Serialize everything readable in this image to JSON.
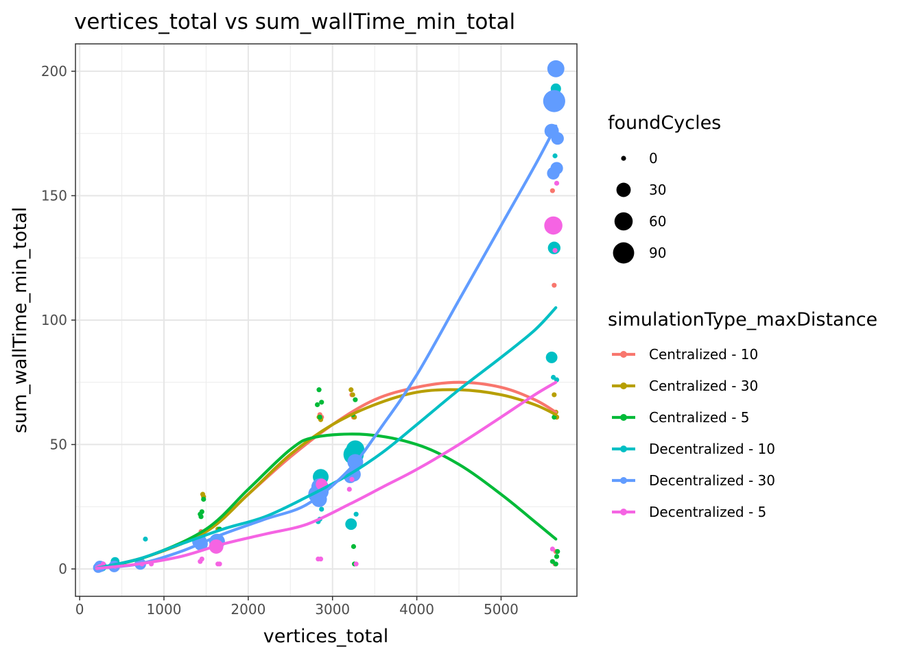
{
  "chart_data": {
    "type": "scatter",
    "title": "vertices_total  vs  sum_wallTime_min_total",
    "xlabel": "vertices_total",
    "ylabel": "sum_wallTime_min_total",
    "xlim": [
      -50,
      5900
    ],
    "ylim": [
      -11,
      211
    ],
    "xticks": [
      0,
      1000,
      2000,
      3000,
      4000,
      5000
    ],
    "yticks": [
      0,
      50,
      100,
      150,
      200
    ],
    "grid": true,
    "legend_size": {
      "title": "foundCycles",
      "entries": [
        {
          "label": "0",
          "value": 0
        },
        {
          "label": "30",
          "value": 30
        },
        {
          "label": "60",
          "value": 60
        },
        {
          "label": "90",
          "value": 90
        }
      ]
    },
    "legend_color": {
      "title": "simulationType_maxDistance",
      "placement": "right"
    },
    "series": [
      {
        "name": "Centralized - 10",
        "color": "#F8766D",
        "points": [
          [
            220,
            0.5,
            0
          ],
          [
            250,
            0.8,
            0
          ],
          [
            400,
            1,
            0
          ],
          [
            720,
            2,
            0
          ],
          [
            1440,
            15,
            0
          ],
          [
            1460,
            14,
            0
          ],
          [
            1620,
            10,
            0
          ],
          [
            2850,
            62,
            0
          ],
          [
            2870,
            61,
            0
          ],
          [
            3230,
            70,
            0
          ],
          [
            3250,
            61,
            0
          ],
          [
            5610,
            152,
            0
          ],
          [
            5630,
            114,
            0
          ],
          [
            5640,
            2,
            0
          ],
          [
            5650,
            7,
            0
          ],
          [
            5660,
            61,
            0
          ]
        ],
        "smooth": [
          [
            200,
            0.2
          ],
          [
            800,
            5
          ],
          [
            1500,
            15
          ],
          [
            2000,
            30
          ],
          [
            2500,
            45
          ],
          [
            3000,
            58
          ],
          [
            3500,
            68
          ],
          [
            4000,
            73
          ],
          [
            4500,
            75
          ],
          [
            5000,
            73
          ],
          [
            5400,
            68
          ],
          [
            5650,
            63
          ]
        ]
      },
      {
        "name": "Centralized - 30",
        "color": "#B79F00",
        "points": [
          [
            220,
            0.5,
            0
          ],
          [
            260,
            1,
            0
          ],
          [
            410,
            1,
            0
          ],
          [
            730,
            2,
            0
          ],
          [
            1460,
            30,
            0
          ],
          [
            1470,
            29,
            0
          ],
          [
            1640,
            16,
            0
          ],
          [
            2840,
            61,
            0
          ],
          [
            2860,
            60,
            0
          ],
          [
            3220,
            72,
            0
          ],
          [
            3240,
            70,
            0
          ],
          [
            3260,
            61,
            0
          ],
          [
            5630,
            70,
            0
          ],
          [
            5650,
            63,
            0
          ],
          [
            5660,
            61,
            0
          ]
        ],
        "smooth": [
          [
            200,
            0.2
          ],
          [
            800,
            5
          ],
          [
            1500,
            15
          ],
          [
            2000,
            30
          ],
          [
            2500,
            46
          ],
          [
            3000,
            58
          ],
          [
            3500,
            66
          ],
          [
            4000,
            71
          ],
          [
            4500,
            72
          ],
          [
            5000,
            70
          ],
          [
            5400,
            66
          ],
          [
            5650,
            62
          ]
        ]
      },
      {
        "name": "Centralized - 5",
        "color": "#00BA38",
        "points": [
          [
            220,
            0.5,
            0
          ],
          [
            250,
            0.5,
            0
          ],
          [
            400,
            1,
            0
          ],
          [
            720,
            2,
            0
          ],
          [
            1430,
            22,
            0
          ],
          [
            1440,
            21,
            0
          ],
          [
            1450,
            23,
            0
          ],
          [
            1470,
            28,
            0
          ],
          [
            1660,
            16,
            0
          ],
          [
            2820,
            66,
            0
          ],
          [
            2840,
            72,
            0
          ],
          [
            2850,
            61,
            0
          ],
          [
            2870,
            67,
            0
          ],
          [
            3240,
            62,
            0
          ],
          [
            3250,
            9,
            0
          ],
          [
            3260,
            2,
            0
          ],
          [
            3270,
            68,
            0
          ],
          [
            5610,
            3,
            0
          ],
          [
            5630,
            61,
            0
          ],
          [
            5650,
            2,
            0
          ],
          [
            5660,
            5,
            0
          ],
          [
            5670,
            7,
            0
          ]
        ],
        "smooth": [
          [
            200,
            0.2
          ],
          [
            800,
            5
          ],
          [
            1500,
            16
          ],
          [
            2000,
            32
          ],
          [
            2500,
            48
          ],
          [
            2800,
            53
          ],
          [
            3400,
            54
          ],
          [
            4000,
            50
          ],
          [
            4500,
            42
          ],
          [
            5000,
            30
          ],
          [
            5400,
            19
          ],
          [
            5650,
            12
          ]
        ]
      },
      {
        "name": "Decentralized - 10",
        "color": "#00BFC4",
        "points": [
          [
            230,
            0.5,
            5
          ],
          [
            260,
            1,
            10
          ],
          [
            420,
            3,
            5
          ],
          [
            780,
            12,
            0
          ],
          [
            1420,
            12,
            20
          ],
          [
            1440,
            11,
            15
          ],
          [
            1650,
            11,
            15
          ],
          [
            2830,
            19,
            0
          ],
          [
            2850,
            20,
            0
          ],
          [
            2860,
            37,
            40
          ],
          [
            2870,
            24,
            0
          ],
          [
            3220,
            18,
            15
          ],
          [
            3250,
            46,
            80
          ],
          [
            3270,
            48,
            60
          ],
          [
            3280,
            22,
            0
          ],
          [
            5600,
            85,
            15
          ],
          [
            5620,
            77,
            0
          ],
          [
            5630,
            129,
            20
          ],
          [
            5650,
            193,
            10
          ],
          [
            5660,
            76,
            0
          ],
          [
            5640,
            166,
            0
          ]
        ],
        "smooth": [
          [
            200,
            0.3
          ],
          [
            700,
            4
          ],
          [
            1200,
            10
          ],
          [
            1700,
            16
          ],
          [
            2200,
            21
          ],
          [
            2700,
            29
          ],
          [
            3200,
            38
          ],
          [
            3600,
            47
          ],
          [
            4000,
            58
          ],
          [
            4500,
            72
          ],
          [
            5000,
            85
          ],
          [
            5400,
            96
          ],
          [
            5650,
            105
          ]
        ]
      },
      {
        "name": "Decentralized - 30",
        "color": "#619CFF",
        "points": [
          [
            220,
            0.5,
            10
          ],
          [
            240,
            1,
            15
          ],
          [
            410,
            1,
            15
          ],
          [
            720,
            2,
            15
          ],
          [
            1420,
            11,
            30
          ],
          [
            1440,
            10,
            25
          ],
          [
            1630,
            11,
            40
          ],
          [
            2820,
            30,
            60
          ],
          [
            2840,
            28,
            40
          ],
          [
            2850,
            33,
            50
          ],
          [
            2860,
            31,
            40
          ],
          [
            3210,
            37,
            20
          ],
          [
            3270,
            43,
            40
          ],
          [
            3250,
            38,
            30
          ],
          [
            5600,
            176,
            30
          ],
          [
            5620,
            159,
            20
          ],
          [
            5630,
            188,
            100
          ],
          [
            5650,
            201,
            50
          ],
          [
            5660,
            161,
            20
          ],
          [
            5670,
            173,
            20
          ]
        ],
        "smooth": [
          [
            200,
            0.2
          ],
          [
            700,
            2
          ],
          [
            1200,
            7
          ],
          [
            1700,
            14
          ],
          [
            2200,
            20
          ],
          [
            2700,
            26
          ],
          [
            3200,
            40
          ],
          [
            3600,
            58
          ],
          [
            4000,
            78
          ],
          [
            4500,
            108
          ],
          [
            5000,
            138
          ],
          [
            5400,
            162
          ],
          [
            5650,
            178
          ]
        ]
      },
      {
        "name": "Decentralized - 5",
        "color": "#F564E3",
        "points": [
          [
            210,
            0.5,
            0
          ],
          [
            240,
            1,
            0
          ],
          [
            280,
            2,
            0
          ],
          [
            420,
            1,
            0
          ],
          [
            740,
            2,
            0
          ],
          [
            850,
            2,
            0
          ],
          [
            1430,
            3,
            0
          ],
          [
            1450,
            4,
            0
          ],
          [
            1620,
            9,
            30
          ],
          [
            1640,
            2,
            0
          ],
          [
            1660,
            2,
            0
          ],
          [
            2830,
            4,
            0
          ],
          [
            2860,
            4,
            0
          ],
          [
            2870,
            34,
            15
          ],
          [
            3200,
            32,
            0
          ],
          [
            3230,
            36,
            0
          ],
          [
            3280,
            2,
            0
          ],
          [
            5610,
            8,
            0
          ],
          [
            5620,
            138,
            60
          ],
          [
            5640,
            128,
            0
          ],
          [
            5660,
            155,
            0
          ]
        ],
        "smooth": [
          [
            200,
            0.2
          ],
          [
            700,
            2
          ],
          [
            1200,
            5
          ],
          [
            1700,
            10
          ],
          [
            2200,
            14
          ],
          [
            2700,
            18
          ],
          [
            3200,
            26
          ],
          [
            3600,
            33
          ],
          [
            4000,
            40
          ],
          [
            4500,
            50
          ],
          [
            5000,
            61
          ],
          [
            5400,
            70
          ],
          [
            5650,
            75
          ]
        ]
      }
    ]
  }
}
